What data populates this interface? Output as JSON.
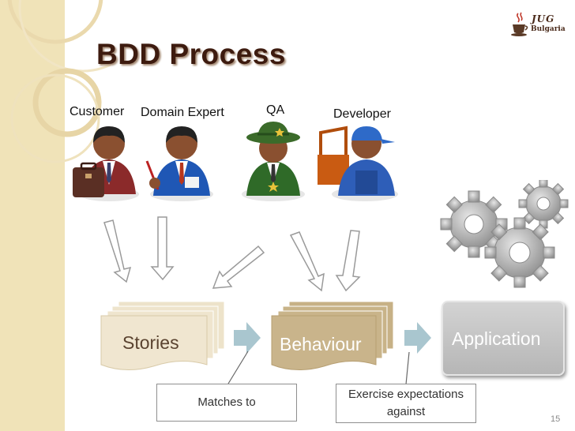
{
  "slide": {
    "title": "BDD Process",
    "page_number": "15"
  },
  "logo": {
    "line1": "JUG",
    "line2": "Bulgaria",
    "icon": "java-cup-icon"
  },
  "roles": [
    {
      "label": "Customer",
      "icon": "customer-briefcase-person-icon"
    },
    {
      "label": "Domain Expert",
      "icon": "domain-expert-pen-person-icon"
    },
    {
      "label": "QA",
      "icon": "qa-sheriff-person-icon"
    },
    {
      "label": "Developer",
      "icon": "developer-toolbox-person-icon"
    }
  ],
  "stages": {
    "stories": "Stories",
    "behaviour": "Behaviour",
    "application": "Application"
  },
  "callouts": {
    "matches": "Matches to",
    "exercise_line1": "Exercise expectations",
    "exercise_line2": "against"
  },
  "icons": {
    "gears": "gears-icon",
    "flow_arrow": "right-arrow-icon",
    "down_arrow": "hollow-down-arrow-icon"
  },
  "colors": {
    "title": "#3d1b0f",
    "strip": "#f0e3b8",
    "stories_paper": "#f0e6d0",
    "behaviour_paper": "#c9b48b",
    "application_box": "#c4c4c4",
    "flow_arrow": "#a9c6cf"
  }
}
